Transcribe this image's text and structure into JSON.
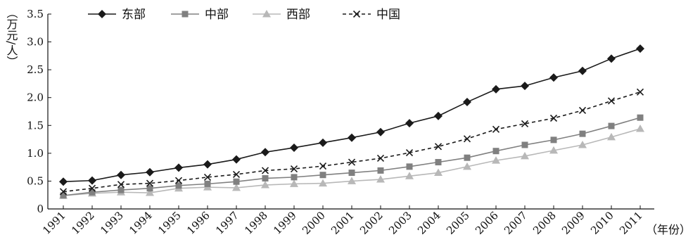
{
  "chart_data": {
    "type": "line",
    "title": "",
    "ylabel": "（万元/人）",
    "xlabel": "（年份）",
    "ylim": [
      0,
      3.5
    ],
    "yticks": [
      "0",
      "0.5",
      "1.0",
      "1.5",
      "2.0",
      "2.5",
      "3.0",
      "3.5"
    ],
    "categories": [
      "1991",
      "1992",
      "1993",
      "1994",
      "1995",
      "1996",
      "1997",
      "1998",
      "1999",
      "2000",
      "2001",
      "2002",
      "2003",
      "2004",
      "2005",
      "2006",
      "2007",
      "2008",
      "2009",
      "2010",
      "2011"
    ],
    "grid": false,
    "legend_position": "top-left",
    "series": [
      {
        "name": "东部",
        "marker": "diamond",
        "line": "solid",
        "color": "#1a1a1a",
        "values": [
          0.49,
          0.51,
          0.61,
          0.66,
          0.74,
          0.8,
          0.89,
          1.02,
          1.1,
          1.19,
          1.28,
          1.38,
          1.54,
          1.67,
          1.92,
          2.15,
          2.21,
          2.36,
          2.48,
          2.7,
          2.88
        ]
      },
      {
        "name": "中部",
        "marker": "square",
        "line": "solid",
        "color": "#808080",
        "values": [
          0.24,
          0.3,
          0.34,
          0.37,
          0.42,
          0.45,
          0.49,
          0.55,
          0.57,
          0.61,
          0.65,
          0.69,
          0.76,
          0.84,
          0.92,
          1.04,
          1.15,
          1.24,
          1.35,
          1.49,
          1.64
        ]
      },
      {
        "name": "西部",
        "marker": "triangle",
        "line": "solid",
        "color": "#b8b8b8",
        "values": [
          0.24,
          0.28,
          0.3,
          0.29,
          0.37,
          0.39,
          0.38,
          0.43,
          0.45,
          0.46,
          0.5,
          0.53,
          0.59,
          0.65,
          0.76,
          0.87,
          0.95,
          1.05,
          1.15,
          1.29,
          1.44
        ]
      },
      {
        "name": "中国",
        "marker": "x",
        "line": "dashed",
        "color": "#1a1a1a",
        "values": [
          0.31,
          0.37,
          0.44,
          0.46,
          0.51,
          0.57,
          0.62,
          0.69,
          0.72,
          0.77,
          0.84,
          0.91,
          1.01,
          1.12,
          1.26,
          1.43,
          1.53,
          1.63,
          1.77,
          1.94,
          2.1
        ]
      }
    ]
  }
}
